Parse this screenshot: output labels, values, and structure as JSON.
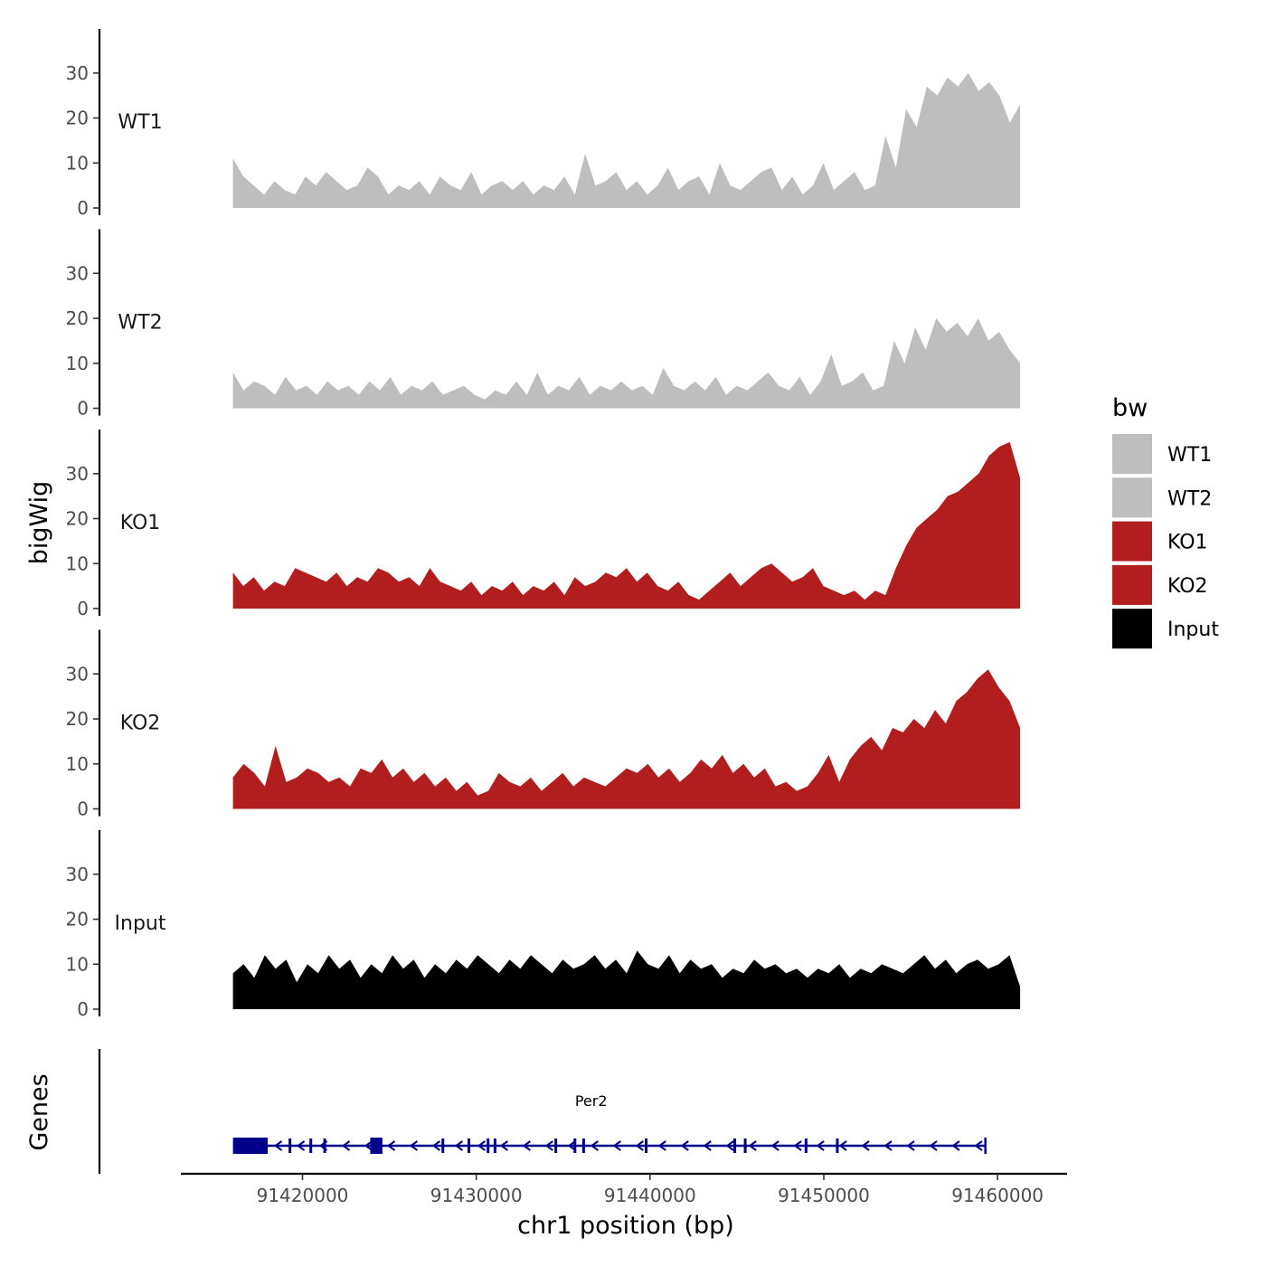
{
  "chart_data": {
    "type": "area",
    "subtype": "genome-browser-coverage-tracks",
    "xlabel": "chr1 position (bp)",
    "ylabel": "bigWig",
    "gene_panel_label": "Genes",
    "x_ticks": [
      91420000,
      91430000,
      91440000,
      91450000,
      91460000
    ],
    "x_tick_labels": [
      "91420000",
      "91430000",
      "91440000",
      "91450000",
      "91460000"
    ],
    "xlim": [
      91413000,
      91464000
    ],
    "data_range": [
      91416000,
      91461300
    ],
    "y_ticks": [
      0,
      10,
      20,
      30
    ],
    "y_tick_labels": [
      "0",
      "10",
      "20",
      "30"
    ],
    "ylim": [
      0,
      39
    ],
    "legend_title": "bw",
    "legend": [
      {
        "label": "WT1",
        "color": "#BEBEBE"
      },
      {
        "label": "WT2",
        "color": "#BEBEBE"
      },
      {
        "label": "KO1",
        "color": "#B21E1E"
      },
      {
        "label": "KO2",
        "color": "#B21E1E"
      },
      {
        "label": "Input",
        "color": "#000000"
      }
    ],
    "series": [
      {
        "name": "WT1",
        "color": "#BEBEBE",
        "values": [
          11,
          7,
          5,
          3,
          6,
          4,
          3,
          7,
          5,
          8,
          6,
          4,
          5,
          9,
          7,
          3,
          5,
          4,
          6,
          3,
          7,
          5,
          4,
          8,
          3,
          5,
          6,
          4,
          6,
          3,
          5,
          4,
          7,
          3,
          12,
          5,
          6,
          8,
          4,
          6,
          3,
          5,
          9,
          4,
          6,
          7,
          3,
          10,
          5,
          4,
          6,
          8,
          9,
          4,
          7,
          3,
          5,
          10,
          4,
          6,
          8,
          4,
          5,
          16,
          9,
          22,
          18,
          27,
          25,
          29,
          27,
          30,
          26,
          28,
          25,
          19,
          23
        ]
      },
      {
        "name": "WT2",
        "color": "#BEBEBE",
        "values": [
          8,
          4,
          6,
          5,
          3,
          7,
          4,
          5,
          3,
          6,
          4,
          5,
          3,
          6,
          4,
          7,
          3,
          5,
          4,
          6,
          3,
          4,
          5,
          3,
          2,
          4,
          3,
          6,
          3,
          8,
          3,
          5,
          4,
          7,
          3,
          5,
          4,
          6,
          4,
          5,
          3,
          9,
          5,
          4,
          6,
          4,
          7,
          3,
          5,
          4,
          6,
          8,
          5,
          4,
          7,
          3,
          6,
          12,
          5,
          6,
          8,
          4,
          5,
          15,
          10,
          18,
          13,
          20,
          17,
          19,
          16,
          20,
          15,
          17,
          13,
          10
        ]
      },
      {
        "name": "KO1",
        "color": "#B21E1E",
        "values": [
          8,
          5,
          7,
          4,
          6,
          5,
          9,
          8,
          7,
          6,
          8,
          5,
          7,
          6,
          9,
          8,
          6,
          7,
          5,
          9,
          6,
          5,
          4,
          6,
          3,
          5,
          4,
          6,
          3,
          5,
          4,
          6,
          3,
          7,
          5,
          6,
          8,
          7,
          9,
          6,
          8,
          5,
          4,
          6,
          3,
          2,
          4,
          6,
          8,
          5,
          7,
          9,
          10,
          8,
          6,
          7,
          9,
          5,
          4,
          3,
          4,
          2,
          4,
          3,
          9,
          14,
          18,
          20,
          22,
          25,
          26,
          28,
          30,
          34,
          36,
          37,
          29
        ]
      },
      {
        "name": "KO2",
        "color": "#B21E1E",
        "values": [
          7,
          10,
          8,
          5,
          14,
          6,
          7,
          9,
          8,
          6,
          7,
          5,
          9,
          8,
          11,
          7,
          9,
          6,
          8,
          5,
          7,
          4,
          6,
          3,
          4,
          8,
          6,
          5,
          7,
          4,
          6,
          8,
          5,
          7,
          6,
          5,
          7,
          9,
          8,
          10,
          7,
          9,
          6,
          8,
          11,
          9,
          12,
          8,
          10,
          7,
          9,
          5,
          6,
          4,
          5,
          8,
          12,
          6,
          11,
          14,
          16,
          13,
          18,
          17,
          20,
          18,
          22,
          19,
          24,
          26,
          29,
          31,
          27,
          24,
          18
        ]
      },
      {
        "name": "Input",
        "color": "#000000",
        "values": [
          8,
          10,
          7,
          12,
          9,
          11,
          6,
          10,
          8,
          12,
          9,
          11,
          7,
          10,
          8,
          12,
          9,
          11,
          7,
          10,
          8,
          11,
          9,
          12,
          10,
          8,
          11,
          9,
          12,
          10,
          8,
          11,
          9,
          10,
          12,
          9,
          11,
          8,
          13,
          10,
          9,
          12,
          8,
          11,
          9,
          10,
          7,
          9,
          8,
          11,
          9,
          10,
          8,
          9,
          7,
          9,
          8,
          10,
          7,
          9,
          8,
          10,
          9,
          8,
          10,
          12,
          9,
          11,
          8,
          10,
          11,
          9,
          10,
          12,
          5
        ]
      }
    ],
    "gene_track": {
      "gene": "Per2",
      "strand": "-",
      "start": 91416000,
      "end": 91459300,
      "color": "#00008B",
      "exons": [
        [
          91416000,
          91418000
        ],
        [
          91419200,
          91419350
        ],
        [
          91420400,
          91420550
        ],
        [
          91421200,
          91421350
        ],
        [
          91423900,
          91424600
        ],
        [
          91428000,
          91428150
        ],
        [
          91429500,
          91429650
        ],
        [
          91430600,
          91430750
        ],
        [
          91431000,
          91431150
        ],
        [
          91434500,
          91434650
        ],
        [
          91435600,
          91435750
        ],
        [
          91436100,
          91436250
        ],
        [
          91439700,
          91439850
        ],
        [
          91444800,
          91444950
        ],
        [
          91445400,
          91445550
        ],
        [
          91448900,
          91449050
        ],
        [
          91450700,
          91450850
        ]
      ]
    }
  }
}
